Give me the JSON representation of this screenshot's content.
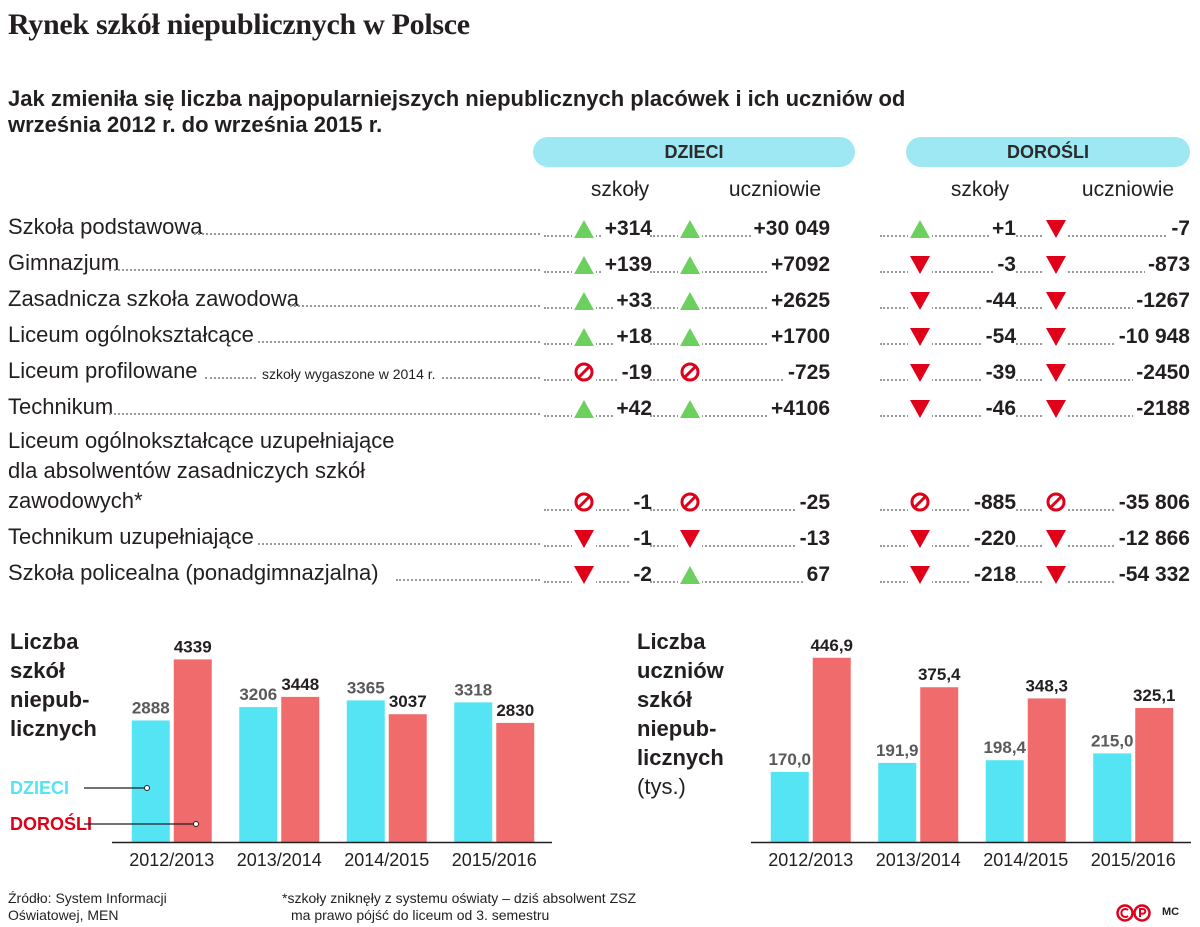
{
  "title": "Rynek szkół niepublicznych w Polsce",
  "subtitle": "Jak zmieniła się liczba najpopularniejszych niepublicznych placówek i ich uczniów od września 2012 r. do września 2015 r.",
  "groups": {
    "children": "DZIECI",
    "adults": "DOROŚLI"
  },
  "columns": {
    "schools": "szkoły",
    "students": "uczniowie"
  },
  "colors": {
    "up": "#6cd05e",
    "down": "#e0001a",
    "stop": "#e0001a",
    "children": "#55e4f4",
    "adults": "#f06b6b",
    "pill": "#9ee8f3"
  },
  "rows": [
    {
      "label": "Szkoła podstawowa",
      "values": [
        {
          "trend": "up",
          "value": "+314"
        },
        {
          "trend": "up",
          "value": "+30 049"
        },
        {
          "trend": "up",
          "value": "+1"
        },
        {
          "trend": "down",
          "value": "-7"
        }
      ]
    },
    {
      "label": "Gimnazjum",
      "values": [
        {
          "trend": "up",
          "value": "+139"
        },
        {
          "trend": "up",
          "value": "+7092"
        },
        {
          "trend": "down",
          "value": "-3"
        },
        {
          "trend": "down",
          "value": "-873"
        }
      ]
    },
    {
      "label": "Zasadnicza szkoła zawodowa",
      "values": [
        {
          "trend": "up",
          "value": "+33"
        },
        {
          "trend": "up",
          "value": "+2625"
        },
        {
          "trend": "down",
          "value": "-44"
        },
        {
          "trend": "down",
          "value": "-1267"
        }
      ]
    },
    {
      "label": "Liceum ogólnokształcące",
      "values": [
        {
          "trend": "up",
          "value": "+18"
        },
        {
          "trend": "up",
          "value": "+1700"
        },
        {
          "trend": "down",
          "value": "-54"
        },
        {
          "trend": "down",
          "value": "-10 948"
        }
      ]
    },
    {
      "label": "Liceum profilowane",
      "note": "szkoły wygaszone w 2014 r.",
      "values": [
        {
          "trend": "stop",
          "value": "-19"
        },
        {
          "trend": "stop",
          "value": "-725"
        },
        {
          "trend": "down",
          "value": "-39"
        },
        {
          "trend": "down",
          "value": "-2450"
        }
      ]
    },
    {
      "label": "Technikum",
      "values": [
        {
          "trend": "up",
          "value": "+42"
        },
        {
          "trend": "up",
          "value": "+4106"
        },
        {
          "trend": "down",
          "value": "-46"
        },
        {
          "trend": "down",
          "value": "-2188"
        }
      ]
    },
    {
      "label": "Liceum ogólnokształcące uzupełniające dla absolwentów zasadniczych szkół zawodowych*",
      "lines": [
        "Liceum ogólnokształcące uzupełniające",
        "dla absolwentów zasadniczych szkół",
        "zawodowych*"
      ],
      "values": [
        {
          "trend": "stop",
          "value": "-1"
        },
        {
          "trend": "stop",
          "value": "-25"
        },
        {
          "trend": "stop",
          "value": "-885"
        },
        {
          "trend": "stop",
          "value": "-35 806"
        }
      ]
    },
    {
      "label": "Technikum uzupełniające",
      "values": [
        {
          "trend": "down",
          "value": "-1"
        },
        {
          "trend": "down",
          "value": "-13"
        },
        {
          "trend": "down",
          "value": "-220"
        },
        {
          "trend": "down",
          "value": "-12 866"
        }
      ]
    },
    {
      "label": "Szkoła policealna (ponadgimnazjalna)",
      "values": [
        {
          "trend": "down",
          "value": "-2"
        },
        {
          "trend": "up",
          "value": "67"
        },
        {
          "trend": "down",
          "value": "-218"
        },
        {
          "trend": "down",
          "value": "-54 332"
        }
      ]
    }
  ],
  "chart_data": [
    {
      "type": "bar",
      "title": "Liczba szkół niepublicznych",
      "title_lines": [
        "Liczba",
        "szkół",
        "niepub-",
        "licznych"
      ],
      "categories": [
        "2012/2013",
        "2013/2014",
        "2014/2015",
        "2015/2016"
      ],
      "series": [
        {
          "name": "DZIECI",
          "values": [
            2888,
            3206,
            3365,
            3318
          ]
        },
        {
          "name": "DOROŚLI",
          "values": [
            4339,
            3448,
            3037,
            2830
          ]
        }
      ],
      "labels": [
        [
          "2888",
          "3206",
          "3365",
          "3318"
        ],
        [
          "4339",
          "3448",
          "3037",
          "2830"
        ]
      ],
      "ylim": [
        0,
        4800
      ]
    },
    {
      "type": "bar",
      "title": "Liczba uczniów szkół niepublicznych (tys.)",
      "title_lines": [
        "Liczba",
        "uczniów",
        "szkół",
        "niepub-",
        "licznych"
      ],
      "unit": "(tys.)",
      "categories": [
        "2012/2013",
        "2013/2014",
        "2014/2015",
        "2015/2016"
      ],
      "series": [
        {
          "name": "DZIECI",
          "values": [
            170.0,
            191.9,
            198.4,
            215.0
          ]
        },
        {
          "name": "DOROŚLI",
          "values": [
            446.9,
            375.4,
            348.3,
            325.1
          ]
        }
      ],
      "labels": [
        [
          "170,0",
          "191,9",
          "198,4",
          "215,0"
        ],
        [
          "446,9",
          "375,4",
          "348,3",
          "325,1"
        ]
      ],
      "ylim": [
        0,
        490
      ]
    }
  ],
  "source": "Źródło: System Informacji Oświatowej, MEN",
  "source_lines": [
    "Źródło: System Informacji",
    "Oświatowej, MEN"
  ],
  "footnote": "*szkoły zniknęły z systemu oświaty – dziś absolwent ZSZ ma prawo pójść do liceum od 3. semestru",
  "footnote_lines": [
    "*szkoły zniknęły z systemu oświaty – dziś absolwent ZSZ",
    "ma prawo pójść do liceum od 3. semestru"
  ],
  "credit": "MC"
}
